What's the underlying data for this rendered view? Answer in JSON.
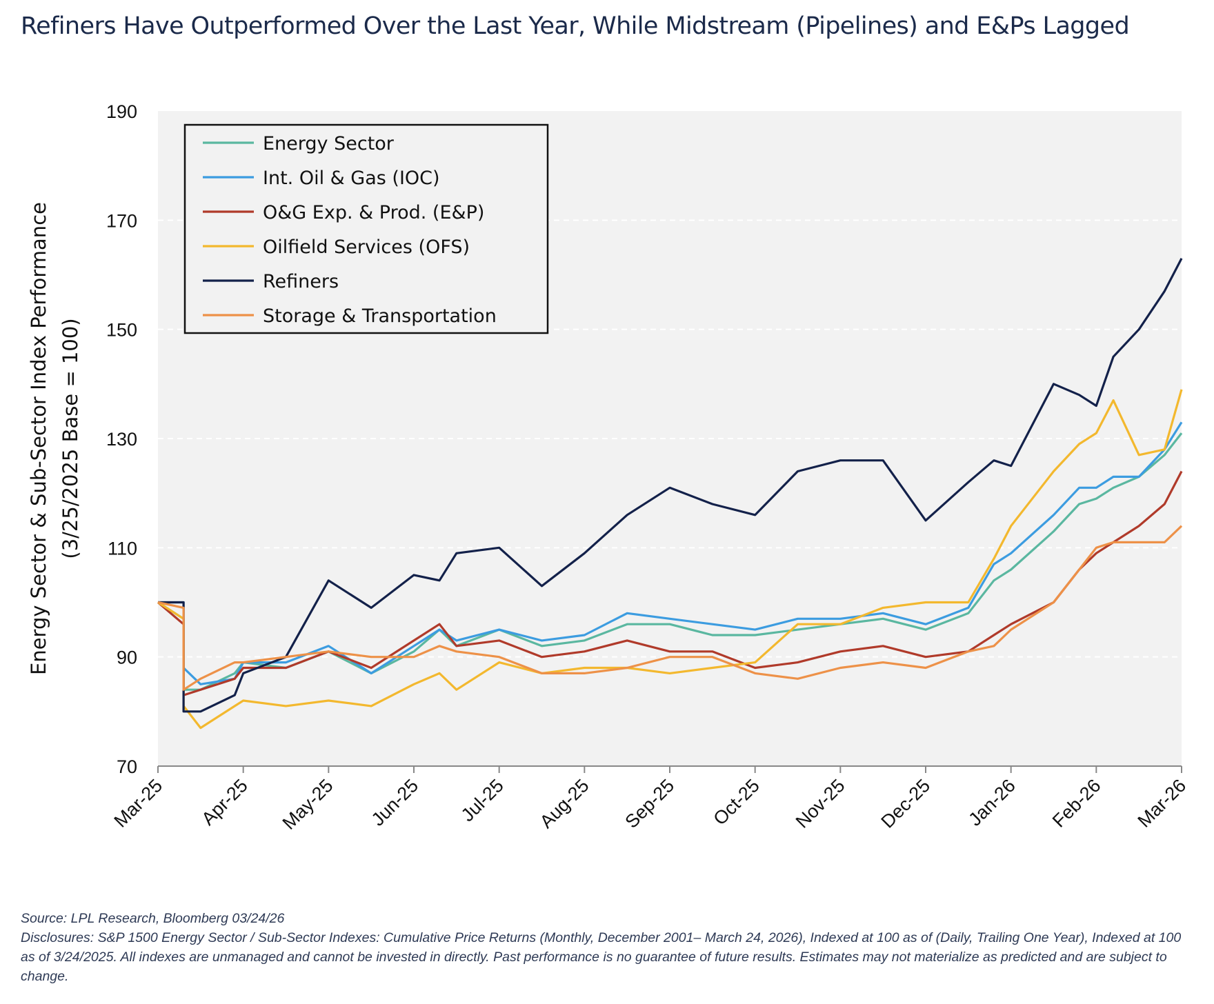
{
  "title": "Refiners Have Outperformed Over the Last Year, While Midstream (Pipelines) and E&Ps Lagged",
  "footnotes": {
    "source": "Source: LPL Research, Bloomberg 03/24/26",
    "disclosures": "Disclosures: S&P 1500 Energy Sector / Sub-Sector Indexes: Cumulative Price Returns (Monthly, December 2001– March 24, 2026), Indexed at 100 as of (Daily, Trailing One Year), Indexed at 100 as of 3/24/2025. All indexes are unmanaged and cannot be invested in directly. Past performance is no guarantee of future results. Estimates may not materialize as predicted and are subject to change."
  },
  "chart_data": {
    "type": "line",
    "ylabel_line1": "Energy Sector & Sub-Sector Index Performance",
    "ylabel_line2": "(3/25/2025 Base = 100)",
    "xlabel": "",
    "ylim": [
      70,
      190
    ],
    "yticks": [
      70,
      90,
      110,
      130,
      150,
      170,
      190
    ],
    "xlim": [
      0,
      12
    ],
    "xticks": [
      "Mar-25",
      "Apr-25",
      "May-25",
      "Jun-25",
      "Jul-25",
      "Aug-25",
      "Sep-25",
      "Oct-25",
      "Nov-25",
      "Dec-25",
      "Jan-26",
      "Feb-26",
      "Mar-26"
    ],
    "grid": "horizontal-dashed",
    "legend_position": "top-left",
    "plot_background": "#f2f2f2",
    "series": [
      {
        "name": "Energy Sector",
        "color": "#5ab7a0",
        "points": [
          [
            0,
            100
          ],
          [
            0.3,
            97
          ],
          [
            0.3,
            84
          ],
          [
            0.5,
            84
          ],
          [
            0.9,
            87
          ],
          [
            1,
            89
          ],
          [
            1.5,
            88
          ],
          [
            2,
            91
          ],
          [
            2.5,
            87
          ],
          [
            3,
            91
          ],
          [
            3.3,
            95
          ],
          [
            3.5,
            92
          ],
          [
            4,
            95
          ],
          [
            4.5,
            92
          ],
          [
            5,
            93
          ],
          [
            5.5,
            96
          ],
          [
            6,
            96
          ],
          [
            6.5,
            94
          ],
          [
            7,
            94
          ],
          [
            7.5,
            95
          ],
          [
            8,
            96
          ],
          [
            8.5,
            97
          ],
          [
            9,
            95
          ],
          [
            9.5,
            98
          ],
          [
            9.8,
            104
          ],
          [
            10,
            106
          ],
          [
            10.5,
            113
          ],
          [
            10.8,
            118
          ],
          [
            11,
            119
          ],
          [
            11.2,
            121
          ],
          [
            11.5,
            123
          ],
          [
            11.8,
            127
          ],
          [
            12,
            131
          ]
        ]
      },
      {
        "name": "Int. Oil & Gas (IOC)",
        "color": "#3c9ce0",
        "points": [
          [
            0,
            100
          ],
          [
            0.3,
            100
          ],
          [
            0.3,
            88
          ],
          [
            0.5,
            85
          ],
          [
            0.9,
            86
          ],
          [
            1,
            89
          ],
          [
            1.5,
            89
          ],
          [
            2,
            92
          ],
          [
            2.5,
            87
          ],
          [
            3,
            92
          ],
          [
            3.3,
            95
          ],
          [
            3.5,
            93
          ],
          [
            4,
            95
          ],
          [
            4.5,
            93
          ],
          [
            5,
            94
          ],
          [
            5.5,
            98
          ],
          [
            6,
            97
          ],
          [
            6.5,
            96
          ],
          [
            7,
            95
          ],
          [
            7.5,
            97
          ],
          [
            8,
            97
          ],
          [
            8.5,
            98
          ],
          [
            9,
            96
          ],
          [
            9.5,
            99
          ],
          [
            9.8,
            107
          ],
          [
            10,
            109
          ],
          [
            10.5,
            116
          ],
          [
            10.8,
            121
          ],
          [
            11,
            121
          ],
          [
            11.2,
            123
          ],
          [
            11.5,
            123
          ],
          [
            11.8,
            128
          ],
          [
            12,
            133
          ]
        ]
      },
      {
        "name": "O&G Exp. & Prod. (E&P)",
        "color": "#b03a2a",
        "points": [
          [
            0,
            100
          ],
          [
            0.3,
            96
          ],
          [
            0.3,
            83
          ],
          [
            0.5,
            84
          ],
          [
            0.9,
            86
          ],
          [
            1,
            88
          ],
          [
            1.5,
            88
          ],
          [
            2,
            91
          ],
          [
            2.5,
            88
          ],
          [
            3,
            93
          ],
          [
            3.3,
            96
          ],
          [
            3.5,
            92
          ],
          [
            4,
            93
          ],
          [
            4.5,
            90
          ],
          [
            5,
            91
          ],
          [
            5.5,
            93
          ],
          [
            6,
            91
          ],
          [
            6.5,
            91
          ],
          [
            7,
            88
          ],
          [
            7.5,
            89
          ],
          [
            8,
            91
          ],
          [
            8.5,
            92
          ],
          [
            9,
            90
          ],
          [
            9.5,
            91
          ],
          [
            9.8,
            94
          ],
          [
            10,
            96
          ],
          [
            10.5,
            100
          ],
          [
            10.8,
            106
          ],
          [
            11,
            109
          ],
          [
            11.2,
            111
          ],
          [
            11.5,
            114
          ],
          [
            11.8,
            118
          ],
          [
            12,
            124
          ]
        ]
      },
      {
        "name": "Oilfield Services (OFS)",
        "color": "#f3b82e",
        "points": [
          [
            0,
            100
          ],
          [
            0.3,
            97
          ],
          [
            0.3,
            81
          ],
          [
            0.5,
            77
          ],
          [
            0.9,
            81
          ],
          [
            1,
            82
          ],
          [
            1.5,
            81
          ],
          [
            2,
            82
          ],
          [
            2.5,
            81
          ],
          [
            3,
            85
          ],
          [
            3.3,
            87
          ],
          [
            3.5,
            84
          ],
          [
            4,
            89
          ],
          [
            4.5,
            87
          ],
          [
            5,
            88
          ],
          [
            5.5,
            88
          ],
          [
            6,
            87
          ],
          [
            6.5,
            88
          ],
          [
            7,
            89
          ],
          [
            7.5,
            96
          ],
          [
            8,
            96
          ],
          [
            8.5,
            99
          ],
          [
            9,
            100
          ],
          [
            9.5,
            100
          ],
          [
            9.8,
            108
          ],
          [
            10,
            114
          ],
          [
            10.5,
            124
          ],
          [
            10.8,
            129
          ],
          [
            11,
            131
          ],
          [
            11.2,
            137
          ],
          [
            11.5,
            127
          ],
          [
            11.8,
            128
          ],
          [
            12,
            139
          ]
        ]
      },
      {
        "name": "Refiners",
        "color": "#13214a",
        "points": [
          [
            0,
            100
          ],
          [
            0.3,
            100
          ],
          [
            0.3,
            80
          ],
          [
            0.5,
            80
          ],
          [
            0.9,
            83
          ],
          [
            1,
            87
          ],
          [
            1.5,
            90
          ],
          [
            2,
            104
          ],
          [
            2.5,
            99
          ],
          [
            3,
            105
          ],
          [
            3.3,
            104
          ],
          [
            3.5,
            109
          ],
          [
            4,
            110
          ],
          [
            4.5,
            103
          ],
          [
            5,
            109
          ],
          [
            5.5,
            116
          ],
          [
            6,
            121
          ],
          [
            6.5,
            118
          ],
          [
            7,
            116
          ],
          [
            7.5,
            124
          ],
          [
            8,
            126
          ],
          [
            8.5,
            126
          ],
          [
            9,
            115
          ],
          [
            9.5,
            122
          ],
          [
            9.8,
            126
          ],
          [
            10,
            125
          ],
          [
            10.5,
            140
          ],
          [
            10.8,
            138
          ],
          [
            11,
            136
          ],
          [
            11.2,
            145
          ],
          [
            11.5,
            150
          ],
          [
            11.8,
            157
          ],
          [
            12,
            163
          ]
        ]
      },
      {
        "name": "Storage & Transportation",
        "color": "#ed9148",
        "points": [
          [
            0,
            100
          ],
          [
            0.3,
            99
          ],
          [
            0.3,
            84
          ],
          [
            0.5,
            86
          ],
          [
            0.9,
            89
          ],
          [
            1,
            89
          ],
          [
            1.5,
            90
          ],
          [
            2,
            91
          ],
          [
            2.5,
            90
          ],
          [
            3,
            90
          ],
          [
            3.3,
            92
          ],
          [
            3.5,
            91
          ],
          [
            4,
            90
          ],
          [
            4.5,
            87
          ],
          [
            5,
            87
          ],
          [
            5.5,
            88
          ],
          [
            6,
            90
          ],
          [
            6.5,
            90
          ],
          [
            7,
            87
          ],
          [
            7.5,
            86
          ],
          [
            8,
            88
          ],
          [
            8.5,
            89
          ],
          [
            9,
            88
          ],
          [
            9.5,
            91
          ],
          [
            9.8,
            92
          ],
          [
            10,
            95
          ],
          [
            10.5,
            100
          ],
          [
            10.8,
            106
          ],
          [
            11,
            110
          ],
          [
            11.2,
            111
          ],
          [
            11.5,
            111
          ],
          [
            11.8,
            111
          ],
          [
            12,
            114
          ]
        ]
      }
    ]
  }
}
